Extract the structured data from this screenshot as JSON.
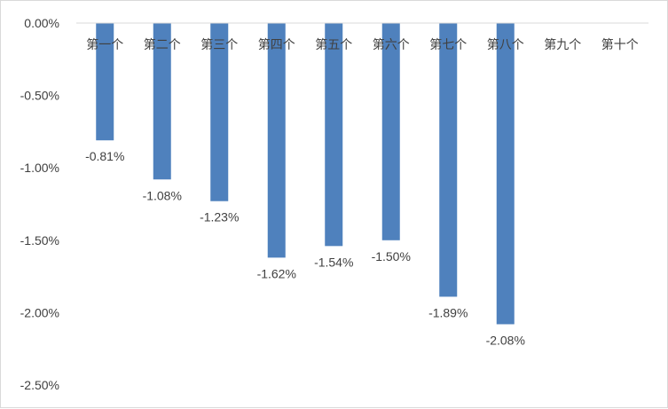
{
  "chart_data": {
    "type": "bar",
    "categories": [
      "第一个",
      "第二个",
      "第三个",
      "第四个",
      "第五个",
      "第六个",
      "第七个",
      "第八个",
      "第九个",
      "第十个"
    ],
    "values": [
      -0.81,
      -1.08,
      -1.23,
      -1.62,
      -1.54,
      -1.5,
      -1.89,
      -2.08,
      null,
      null
    ],
    "data_labels": [
      "-0.81%",
      "-1.08%",
      "-1.23%",
      "-1.62%",
      "-1.54%",
      "-1.50%",
      "-1.89%",
      "-2.08%",
      "",
      ""
    ],
    "y_ticks": [
      0,
      -0.5,
      -1.0,
      -1.5,
      -2.0,
      -2.5
    ],
    "y_tick_labels": [
      "0.00%",
      "-0.50%",
      "-1.00%",
      "-1.50%",
      "-2.00%",
      "-2.50%"
    ],
    "ylim": [
      -2.5,
      0
    ],
    "unit": "%",
    "title": "",
    "xlabel": "",
    "ylabel": "",
    "grid": false,
    "legend": "none",
    "colors": {
      "bar": "#4f81bd",
      "axis": "#d9d9d9",
      "text": "#404040"
    }
  }
}
